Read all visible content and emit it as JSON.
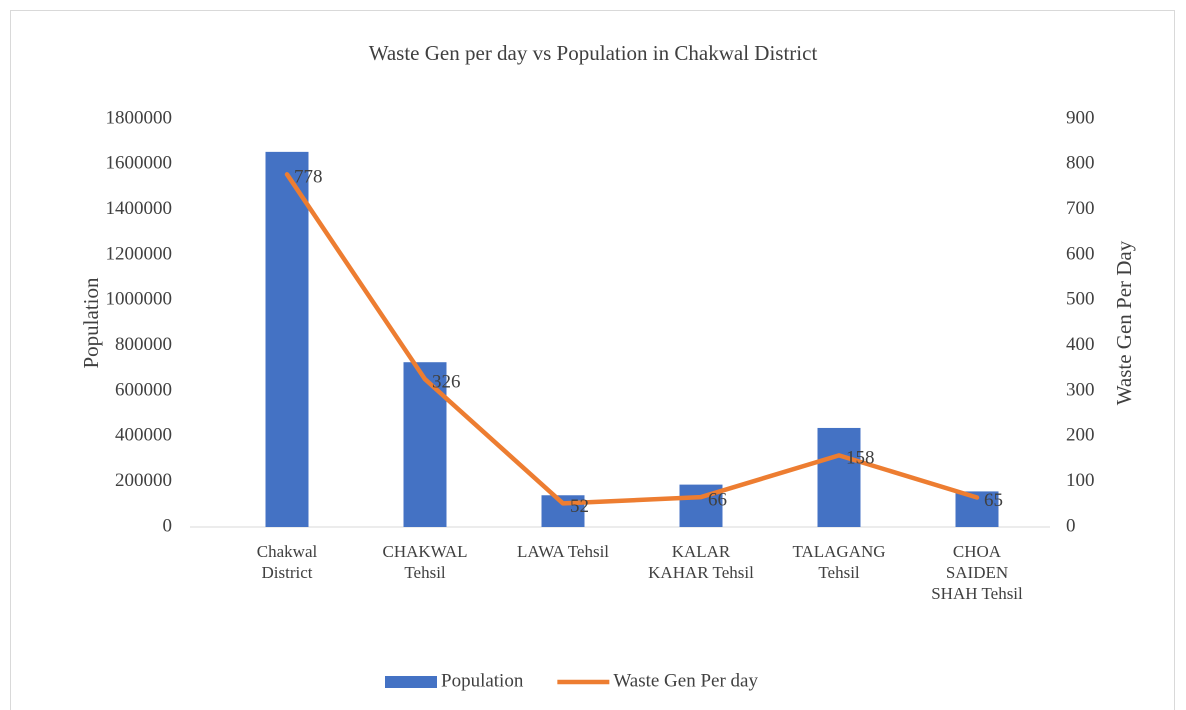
{
  "chart_data": {
    "type": "bar_line",
    "title": "Waste Gen per day vs Population in Chakwal District",
    "categories": [
      "Chakwal District",
      "CHAKWAL Tehsil",
      "LAWA Tehsil",
      "KALAR KAHAR Tehsil",
      "TALAGANG Tehsil",
      "CHOA SAIDEN SHAH Tehsil"
    ],
    "series": [
      {
        "name": "Population",
        "type": "bar",
        "color": "#4472c4",
        "values": [
          1655000,
          727000,
          140000,
          187000,
          437000,
          157000
        ]
      },
      {
        "name": "Waste Gen Per day",
        "type": "line",
        "axis": "y2",
        "color": "#ed7d31",
        "values": [
          778,
          326,
          52,
          66,
          158,
          65
        ]
      }
    ],
    "ylabel": "Population",
    "y2label": "Waste Gen Per Day",
    "ylim": [
      0,
      1800000
    ],
    "yticks": [
      0,
      200000,
      400000,
      600000,
      800000,
      1000000,
      1200000,
      1400000,
      1600000,
      1800000
    ],
    "y2lim": [
      0,
      900
    ],
    "y2ticks": [
      0,
      100,
      200,
      300,
      400,
      500,
      600,
      700,
      800,
      900
    ],
    "grid": false,
    "legend": "bottom"
  }
}
